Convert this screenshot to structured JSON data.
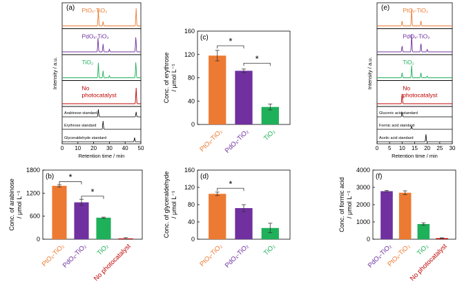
{
  "colors": {
    "pt": "#ed7a32",
    "pd": "#7030a0",
    "tio2": "#1fb05a",
    "none": "#c00000",
    "axis": "#000000",
    "standard": "#000000"
  },
  "chart_data": [
    {
      "panel": "(a)",
      "type": "line",
      "title": "",
      "xlabel": "Retention time / min",
      "ylabel": "Intensity / a.u.",
      "xlim": [
        0,
        50
      ],
      "xticks": [
        0,
        10,
        20,
        30,
        40,
        50
      ],
      "traces": [
        {
          "name": "PtOₓ-TiO₂",
          "color": "pt",
          "peaks": [
            [
              23,
              0.95
            ],
            [
              26,
              0.25
            ],
            [
              47,
              1.0
            ]
          ]
        },
        {
          "name": "PdOₓ-TiO₂",
          "color": "pd",
          "peaks": [
            [
              22.8,
              0.8
            ],
            [
              26,
              0.45
            ],
            [
              30,
              0.15
            ],
            [
              46.8,
              0.85
            ]
          ]
        },
        {
          "name": "TiO₂",
          "color": "tio2",
          "peaks": [
            [
              23,
              0.85
            ],
            [
              26,
              0.4
            ],
            [
              30,
              0.12
            ],
            [
              46.8,
              0.9
            ]
          ]
        },
        {
          "name": "No photocatalyst",
          "color": "none",
          "peaks": [
            [
              47,
              0.9
            ]
          ]
        }
      ],
      "standards": [
        {
          "name": "Arabinose standard",
          "peaks": [
            [
              23,
              0.9
            ],
            [
              47,
              0.6
            ]
          ]
        },
        {
          "name": "Erythrose standard",
          "peaks": [
            [
              26,
              1.0
            ]
          ]
        },
        {
          "name": "Glyceraldehyde standard",
          "peaks": [
            [
              46,
              0.5
            ]
          ]
        }
      ]
    },
    {
      "panel": "(b)",
      "type": "bar",
      "ylabel": "Conc. of arabinose / μmol L⁻¹",
      "ylim": [
        0,
        1800
      ],
      "yticks": [
        0,
        600,
        1200,
        1800
      ],
      "categories": [
        "PtOₓ-TiO₂",
        "PdOₓ-TiO₂",
        "TiO₂",
        "No photocatalyst"
      ],
      "category_colors": [
        "pt",
        "pd",
        "tio2",
        "none"
      ],
      "values": [
        1390,
        960,
        560,
        20
      ],
      "errors": [
        30,
        80,
        15,
        20
      ],
      "significance": [
        {
          "from": 0,
          "to": 1,
          "label": "*",
          "level": 1500
        },
        {
          "from": 1,
          "to": 2,
          "label": "*",
          "level": 1120
        }
      ]
    },
    {
      "panel": "(c)",
      "type": "bar",
      "ylabel": "Conc. of erythrose / μmol L⁻¹",
      "ylim": [
        0,
        160
      ],
      "yticks": [
        0,
        40,
        80,
        120,
        160
      ],
      "categories": [
        "PtOₓ-TiO₂",
        "PdOₓ-TiO₂",
        "TiO₂"
      ],
      "category_colors": [
        "pt",
        "pd",
        "tio2"
      ],
      "values": [
        118,
        92,
        30
      ],
      "errors": [
        9,
        3,
        5
      ],
      "significance": [
        {
          "from": 0,
          "to": 1,
          "label": "*",
          "level": 135
        },
        {
          "from": 1,
          "to": 2,
          "label": "*",
          "level": 105
        }
      ]
    },
    {
      "panel": "(d)",
      "type": "bar",
      "ylabel": "Conc. of glyceraldehyde / μmol L⁻¹",
      "ylim": [
        0,
        160
      ],
      "yticks": [
        0,
        40,
        80,
        120,
        160
      ],
      "categories": [
        "PtOₓ-TiO₂",
        "PdOₓ-TiO₂",
        "TiO₂"
      ],
      "category_colors": [
        "pt",
        "pd",
        "tio2"
      ],
      "values": [
        105,
        72,
        26
      ],
      "errors": [
        4,
        8,
        11
      ],
      "significance": [
        {
          "from": 0,
          "to": 1,
          "label": "*",
          "level": 118
        }
      ]
    },
    {
      "panel": "(e)",
      "type": "line",
      "title": "",
      "xlabel": "Retention time / min",
      "ylabel": "Intensity / a.u.",
      "xlim": [
        0,
        30
      ],
      "xticks": [
        0,
        5,
        10,
        15,
        20,
        25,
        30
      ],
      "traces": [
        {
          "name": "PtOₓ-TiO₂",
          "color": "pt",
          "peaks": [
            [
              10,
              0.3
            ],
            [
              13.8,
              0.95
            ],
            [
              17.5,
              0.3
            ]
          ]
        },
        {
          "name": "PdOₓ-TiO₂",
          "color": "pd",
          "peaks": [
            [
              10,
              0.35
            ],
            [
              13.8,
              1.0
            ],
            [
              17.5,
              0.5
            ],
            [
              20,
              0.15
            ]
          ]
        },
        {
          "name": "TiO₂",
          "color": "tio2",
          "peaks": [
            [
              10,
              0.3
            ],
            [
              13.8,
              0.7
            ],
            [
              17.5,
              0.3
            ],
            [
              20,
              0.1
            ]
          ]
        },
        {
          "name": "No photocatalyst",
          "color": "none",
          "peaks": [
            [
              10,
              0.6
            ]
          ]
        }
      ],
      "standards": [
        {
          "name": "Gluconic acid standard",
          "peaks": [
            [
              10,
              0.6
            ]
          ]
        },
        {
          "name": "Formic acid standard",
          "peaks": [
            [
              13.8,
              0.4
            ]
          ]
        },
        {
          "name": "Acetic acid standard",
          "peaks": [
            [
              19.5,
              0.9
            ]
          ]
        }
      ]
    },
    {
      "panel": "(f)",
      "type": "bar",
      "ylabel": "Conc. of formic acid / μmol L⁻¹",
      "ylim": [
        0,
        4000
      ],
      "yticks": [
        0,
        1000,
        2000,
        3000,
        4000
      ],
      "categories": [
        "PdOₓ-TiO₂",
        "PtOₓ-TiO₂",
        "TiO₂",
        "No photocatalyst"
      ],
      "category_colors": [
        "pd",
        "pt",
        "tio2",
        "none"
      ],
      "values": [
        2780,
        2690,
        880,
        60
      ],
      "errors": [
        40,
        110,
        70,
        20
      ],
      "significance": []
    }
  ]
}
